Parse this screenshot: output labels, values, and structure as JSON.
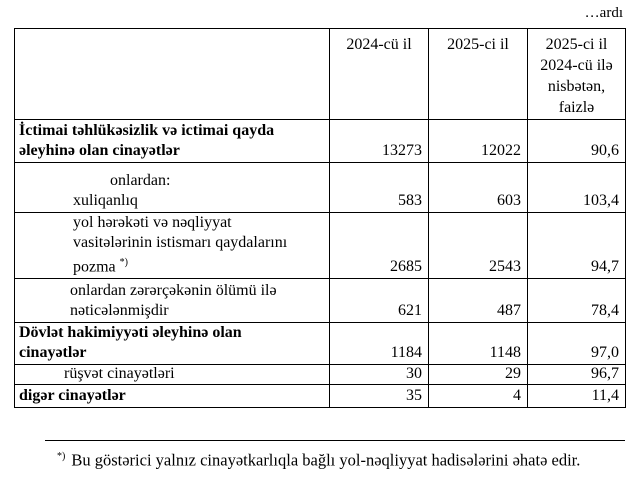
{
  "continued_label": "…ardı",
  "table": {
    "headers": [
      "",
      "2024-cü il",
      "2025-ci il",
      "2025-ci il 2024-cü ilə nisbətən, faizlə"
    ],
    "rows": [
      {
        "label_lines": [
          "İctimai təhlükəsizlik və ictimai qayda",
          "əleyhinə olan cinayətlər"
        ],
        "v2024": "13273",
        "v2025": "12022",
        "pct": "90,6"
      },
      {
        "label_lines": [
          "onlardan:",
          "xuliqanlıq"
        ],
        "v2024": "583",
        "v2025": "603",
        "pct": "103,4"
      },
      {
        "label_lines": [
          "yol hərəkəti və nəqliyyat",
          "vasitələrinin istismarı qaydalarını",
          "pozma"
        ],
        "footnote_mark": "*)",
        "v2024": "2685",
        "v2025": "2543",
        "pct": "94,7"
      },
      {
        "label_lines": [
          "onlardan zərərçəkənin ölümü ilə",
          "nəticələnmişdir"
        ],
        "v2024": "621",
        "v2025": "487",
        "pct": "78,4"
      },
      {
        "label_lines": [
          "Dövlət hakimiyyəti əleyhinə olan",
          "cinayətlər"
        ],
        "v2024": "1184",
        "v2025": "1148",
        "pct": "97,0"
      },
      {
        "label_lines": [
          "rüşvət cinayətləri"
        ],
        "v2024": "30",
        "v2025": "29",
        "pct": "96,7"
      },
      {
        "label_lines": [
          "digər cinayətlər"
        ],
        "v2024": "35",
        "v2025": "4",
        "pct": "11,4"
      }
    ]
  },
  "footnote": {
    "mark": "*)",
    "text": "Bu göstərici yalnız cinayətkarlıqla bağlı yol-nəqliyyat hadisələrini əhatə edir."
  }
}
